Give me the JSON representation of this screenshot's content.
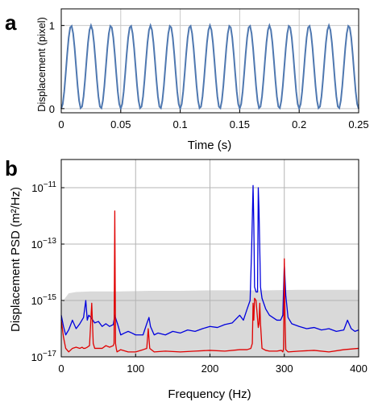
{
  "chart_data": [
    {
      "panel": "a",
      "type": "line",
      "xlabel": "Time (s)",
      "ylabel": "Displacement (pixel)",
      "xlim": [
        0,
        0.25
      ],
      "ylim": [
        -0.05,
        1.2
      ],
      "xticks": [
        0,
        0.05,
        0.1,
        0.15,
        0.2,
        0.25
      ],
      "xticklabels": [
        "0",
        "0.05",
        "0.1",
        "0.15",
        "0.2",
        "0.25"
      ],
      "yticks": [
        0,
        1
      ],
      "yticklabels": [
        "0",
        "1"
      ],
      "grid": true,
      "series": [
        {
          "color": "#4f78b0",
          "sinusoid": {
            "frequency_hz": 60,
            "mean": 0.5,
            "amplitude": 0.5,
            "sample_interval_s": 0.00125
          }
        }
      ]
    },
    {
      "panel": "b",
      "type": "line",
      "yscale": "log",
      "xlabel": "Frequency (Hz)",
      "ylabel": "Displacement PSD (m²/Hz)",
      "xlim": [
        0,
        400
      ],
      "ylim": [
        1e-17,
        1e-10
      ],
      "xticks": [
        0,
        100,
        200,
        300,
        400
      ],
      "xticklabels": [
        "0",
        "100",
        "200",
        "300",
        "400"
      ],
      "yticks": [
        1e-17,
        1e-15,
        1e-13,
        1e-11
      ],
      "yticklabels": [
        {
          "base": "10",
          "exp": "−17"
        },
        {
          "base": "10",
          "exp": "−15"
        },
        {
          "base": "10",
          "exp": "−13"
        },
        {
          "base": "10",
          "exp": "−11"
        }
      ],
      "grid": true,
      "series": [
        {
          "color": "#d9d9d9",
          "fill": true,
          "x": [
            0,
            5,
            10,
            20,
            40,
            80,
            120,
            160,
            200,
            240,
            280,
            320,
            360,
            400
          ],
          "y": [
            8e-16,
            1.2e-15,
            1.8e-15,
            2e-15,
            2.1e-15,
            2.1e-15,
            2.2e-15,
            2.2e-15,
            2.3e-15,
            2.3e-15,
            2.3e-15,
            2.4e-15,
            2.4e-15,
            2.4e-15
          ]
        },
        {
          "color": "#0000dd",
          "x": [
            0,
            3,
            6,
            10,
            15,
            20,
            25,
            30,
            33,
            35,
            37,
            40,
            45,
            50,
            55,
            60,
            65,
            70,
            72,
            74,
            76,
            80,
            85,
            90,
            95,
            100,
            105,
            110,
            115,
            118,
            120,
            125,
            130,
            140,
            150,
            160,
            170,
            180,
            190,
            200,
            210,
            220,
            230,
            240,
            245,
            250,
            254,
            256,
            258,
            259,
            260,
            262,
            264,
            265,
            266,
            268,
            270,
            275,
            280,
            290,
            295,
            298,
            300,
            302,
            305,
            310,
            320,
            330,
            340,
            350,
            360,
            370,
            380,
            385,
            390,
            395,
            400
          ],
          "y": [
            3e-16,
            1.2e-16,
            6e-17,
            9e-17,
            2e-16,
            1e-16,
            1.5e-16,
            2.5e-16,
            1e-15,
            2e-16,
            3e-16,
            2.5e-16,
            1.6e-16,
            1.8e-16,
            1.2e-16,
            1.5e-16,
            1.2e-16,
            1.4e-16,
            3e-16,
            2e-16,
            1.4e-16,
            6e-17,
            7e-17,
            8e-17,
            7e-17,
            6e-17,
            6e-17,
            6e-17,
            1.5e-16,
            2.5e-16,
            1.2e-16,
            6e-17,
            7e-17,
            6e-17,
            8e-17,
            7e-17,
            9e-17,
            8e-17,
            1e-16,
            1.2e-16,
            1.1e-16,
            1.4e-16,
            1.6e-16,
            3e-16,
            2e-16,
            5e-16,
            1e-15,
            6e-14,
            1.2e-11,
            5e-13,
            3e-15,
            2e-15,
            2e-15,
            1e-11,
            1.5e-12,
            3e-15,
            1.2e-15,
            5e-16,
            3e-16,
            2e-16,
            2e-16,
            3e-16,
            2e-14,
            1.5e-15,
            2.5e-16,
            1.5e-16,
            1.2e-16,
            1e-16,
            1.1e-16,
            9e-17,
            1e-16,
            8e-17,
            9e-17,
            2e-16,
            1e-16,
            8e-17,
            9e-17
          ]
        },
        {
          "color": "#e00000",
          "x": [
            0,
            3,
            6,
            10,
            15,
            20,
            25,
            28,
            30,
            32,
            35,
            38,
            41,
            43,
            45,
            50,
            55,
            60,
            65,
            70,
            71,
            72,
            73,
            74,
            75,
            80,
            90,
            100,
            110,
            115,
            117,
            119,
            125,
            140,
            160,
            180,
            200,
            220,
            240,
            250,
            255,
            257,
            258,
            259,
            260,
            262,
            265,
            266,
            267,
            268,
            270,
            275,
            280,
            290,
            296,
            298,
            299,
            300,
            301,
            302,
            305,
            320,
            340,
            360,
            380,
            400
          ],
          "y": [
            2e-16,
            5e-17,
            2e-17,
            1.5e-17,
            2e-17,
            2.2e-17,
            2e-17,
            2.2e-17,
            2e-17,
            2e-17,
            2.2e-17,
            2.5e-17,
            8e-16,
            3e-17,
            2e-17,
            2e-17,
            2e-17,
            2.5e-17,
            2.2e-17,
            2.5e-17,
            3e-17,
            1.5e-12,
            3e-17,
            2e-17,
            1.5e-17,
            1.8e-17,
            1.5e-17,
            1.5e-17,
            1.8e-17,
            2e-17,
            1e-16,
            2e-17,
            1.5e-17,
            1.6e-17,
            1.5e-17,
            1.6e-17,
            1.7e-17,
            1.6e-17,
            1.8e-17,
            1.8e-17,
            2e-17,
            3e-17,
            8e-16,
            2e-16,
            1.2e-15,
            1e-15,
            1.1e-16,
            1.5e-16,
            8e-16,
            1.5e-16,
            2e-17,
            1.7e-17,
            1.6e-17,
            1.6e-17,
            1.7e-17,
            1.5e-17,
            2e-17,
            3e-14,
            2e-16,
            1.8e-17,
            1.5e-17,
            1.6e-17,
            1.7e-17,
            1.5e-17,
            1.8e-17,
            2e-17
          ]
        }
      ]
    }
  ]
}
